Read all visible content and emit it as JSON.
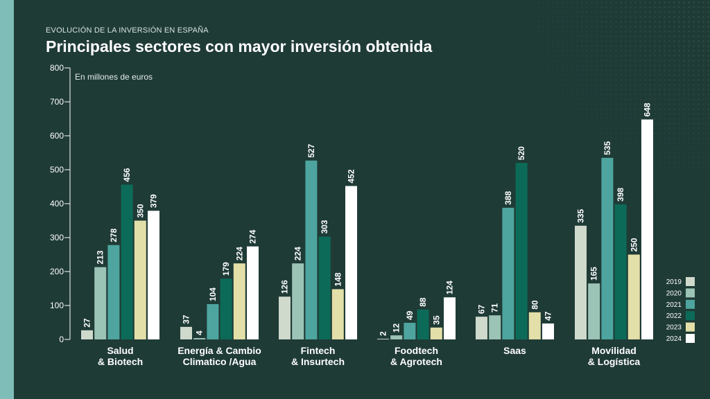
{
  "header": {
    "eyebrow": "EVOLUCIÓN DE LA INVERSIÓN EN ESPAÑA",
    "title": "Principales sectores con mayor inversión obtenida"
  },
  "colors": {
    "background": "#1f3b36",
    "stripe": "#7fbdb8",
    "2019": "#cfd9cc",
    "2020": "#9cc4b6",
    "2021": "#4ea59f",
    "2022": "#0c6b58",
    "2023": "#e3dfa8",
    "2024": "#ffffff"
  },
  "chart_data": {
    "type": "bar",
    "title": "Principales sectores con mayor inversión obtenida",
    "ylabel": "En millones de euros",
    "ylim": [
      0,
      800
    ],
    "yticks": [
      0,
      100,
      200,
      300,
      400,
      500,
      600,
      700,
      800
    ],
    "grid": false,
    "legend_position": "bottom-right",
    "categories": [
      [
        "Salud",
        "& Biotech"
      ],
      [
        "Energía & Cambio",
        "Climatico /Agua"
      ],
      [
        "Fintech",
        "& Insurtech"
      ],
      [
        "Foodtech",
        "& Agrotech"
      ],
      [
        "Saas"
      ],
      [
        "Movilidad",
        "& Logística"
      ]
    ],
    "series": [
      {
        "name": "2019",
        "values": [
          27,
          37,
          126,
          2,
          67,
          335
        ]
      },
      {
        "name": "2020",
        "values": [
          213,
          4,
          224,
          12,
          71,
          165
        ]
      },
      {
        "name": "2021",
        "values": [
          278,
          104,
          527,
          49,
          388,
          535
        ]
      },
      {
        "name": "2022",
        "values": [
          456,
          179,
          303,
          88,
          520,
          398
        ]
      },
      {
        "name": "2023",
        "values": [
          350,
          224,
          148,
          35,
          80,
          250
        ]
      },
      {
        "name": "2024",
        "values": [
          379,
          274,
          452,
          124,
          47,
          648
        ]
      }
    ]
  }
}
